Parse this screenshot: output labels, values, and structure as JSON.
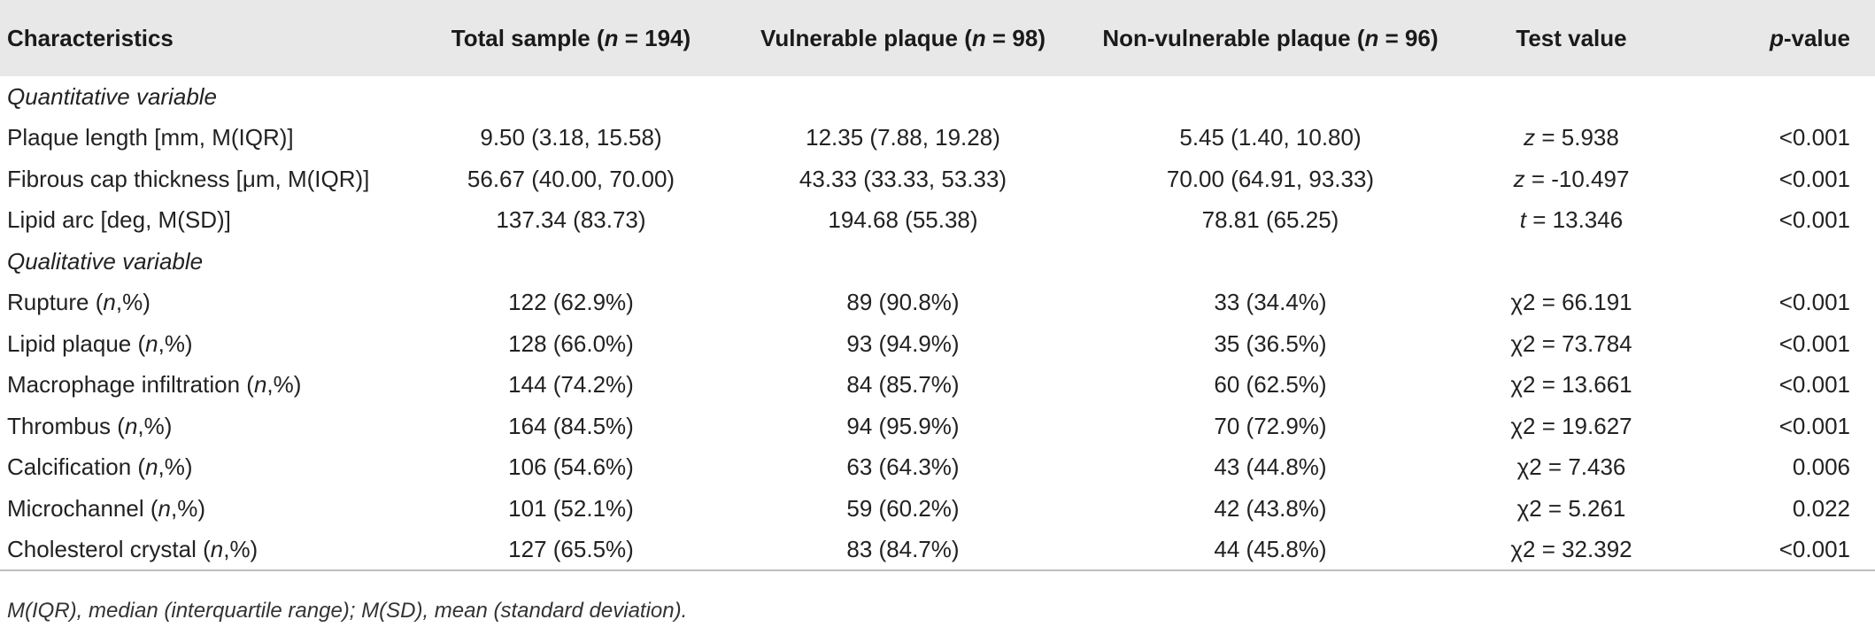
{
  "headers": {
    "characteristics": "Characteristics",
    "total_pre": "Total sample (",
    "total_n": "n",
    "total_post": " = 194)",
    "vuln_pre": "Vulnerable plaque (",
    "vuln_n": "n",
    "vuln_post": " = 98)",
    "nonvuln_pre": "Non-vulnerable plaque (",
    "nonvuln_n": "n",
    "nonvuln_post": " = 96)",
    "test_value": "Test value",
    "p_italic": "p",
    "p_rest": "-value"
  },
  "sections": {
    "quantitative": "Quantitative variable",
    "qualitative": "Qualitative variable"
  },
  "quantitative_rows": [
    {
      "label": "Plaque length [mm, M(IQR)]",
      "total": "9.50 (3.18, 15.58)",
      "vulnerable": "12.35 (7.88, 19.28)",
      "non_vulnerable": "5.45 (1.40, 10.80)",
      "stat": "z",
      "test": " = 5.938",
      "p": "<0.001"
    },
    {
      "label": "Fibrous cap thickness [μm, M(IQR)]",
      "total": "56.67 (40.00, 70.00)",
      "vulnerable": "43.33 (33.33, 53.33)",
      "non_vulnerable": "70.00 (64.91, 93.33)",
      "stat": "z",
      "test": " = -10.497",
      "p": "<0.001"
    },
    {
      "label": "Lipid arc [deg, M(SD)]",
      "total": "137.34 (83.73)",
      "vulnerable": "194.68 (55.38)",
      "non_vulnerable": "78.81 (65.25)",
      "stat": "t",
      "test": " = 13.346",
      "p": "<0.001"
    }
  ],
  "qualitative_rows": [
    {
      "label": "Rupture",
      "unit_pre": " (",
      "unit_n": "n",
      "unit_post": ",%)",
      "total": "122 (62.9%)",
      "vulnerable": "89 (90.8%)",
      "non_vulnerable": "33 (34.4%)",
      "test": "χ2 = 66.191",
      "p": "<0.001"
    },
    {
      "label": "Lipid plaque",
      "unit_pre": " (",
      "unit_n": "n",
      "unit_post": ",%)",
      "total": "128 (66.0%)",
      "vulnerable": "93 (94.9%)",
      "non_vulnerable": "35 (36.5%)",
      "test": "χ2 = 73.784",
      "p": "<0.001"
    },
    {
      "label": "Macrophage infiltration",
      "unit_pre": " (",
      "unit_n": "n",
      "unit_post": ",%)",
      "total": "144 (74.2%)",
      "vulnerable": "84 (85.7%)",
      "non_vulnerable": "60 (62.5%)",
      "test": "χ2 = 13.661",
      "p": "<0.001"
    },
    {
      "label": "Thrombus",
      "unit_pre": " (",
      "unit_n": "n",
      "unit_post": ",%)",
      "total": "164 (84.5%)",
      "vulnerable": "94 (95.9%)",
      "non_vulnerable": "70 (72.9%)",
      "test": "χ2 = 19.627",
      "p": "<0.001"
    },
    {
      "label": "Calcification",
      "unit_pre": " (",
      "unit_n": "n",
      "unit_post": ",%)",
      "total": "106 (54.6%)",
      "vulnerable": "63 (64.3%)",
      "non_vulnerable": "43 (44.8%)",
      "test": "χ2 = 7.436",
      "p": "0.006"
    },
    {
      "label": "Microchannel",
      "unit_pre": " (",
      "unit_n": "n",
      "unit_post": ",%)",
      "total": "101 (52.1%)",
      "vulnerable": "59 (60.2%)",
      "non_vulnerable": "42 (43.8%)",
      "test": "χ2 = 5.261",
      "p": "0.022"
    },
    {
      "label": "Cholesterol crystal",
      "unit_pre": " (",
      "unit_n": "n",
      "unit_post": ",%)",
      "total": "127 (65.5%)",
      "vulnerable": "83 (84.7%)",
      "non_vulnerable": "44 (45.8%)",
      "test": "χ2 = 32.392",
      "p": "<0.001"
    }
  ],
  "footnote": "M(IQR), median (interquartile range); M(SD), mean (standard deviation).",
  "colors": {
    "header_bg": "#e8e8e8",
    "rule": "#bdbdbd",
    "text": "#222222"
  }
}
